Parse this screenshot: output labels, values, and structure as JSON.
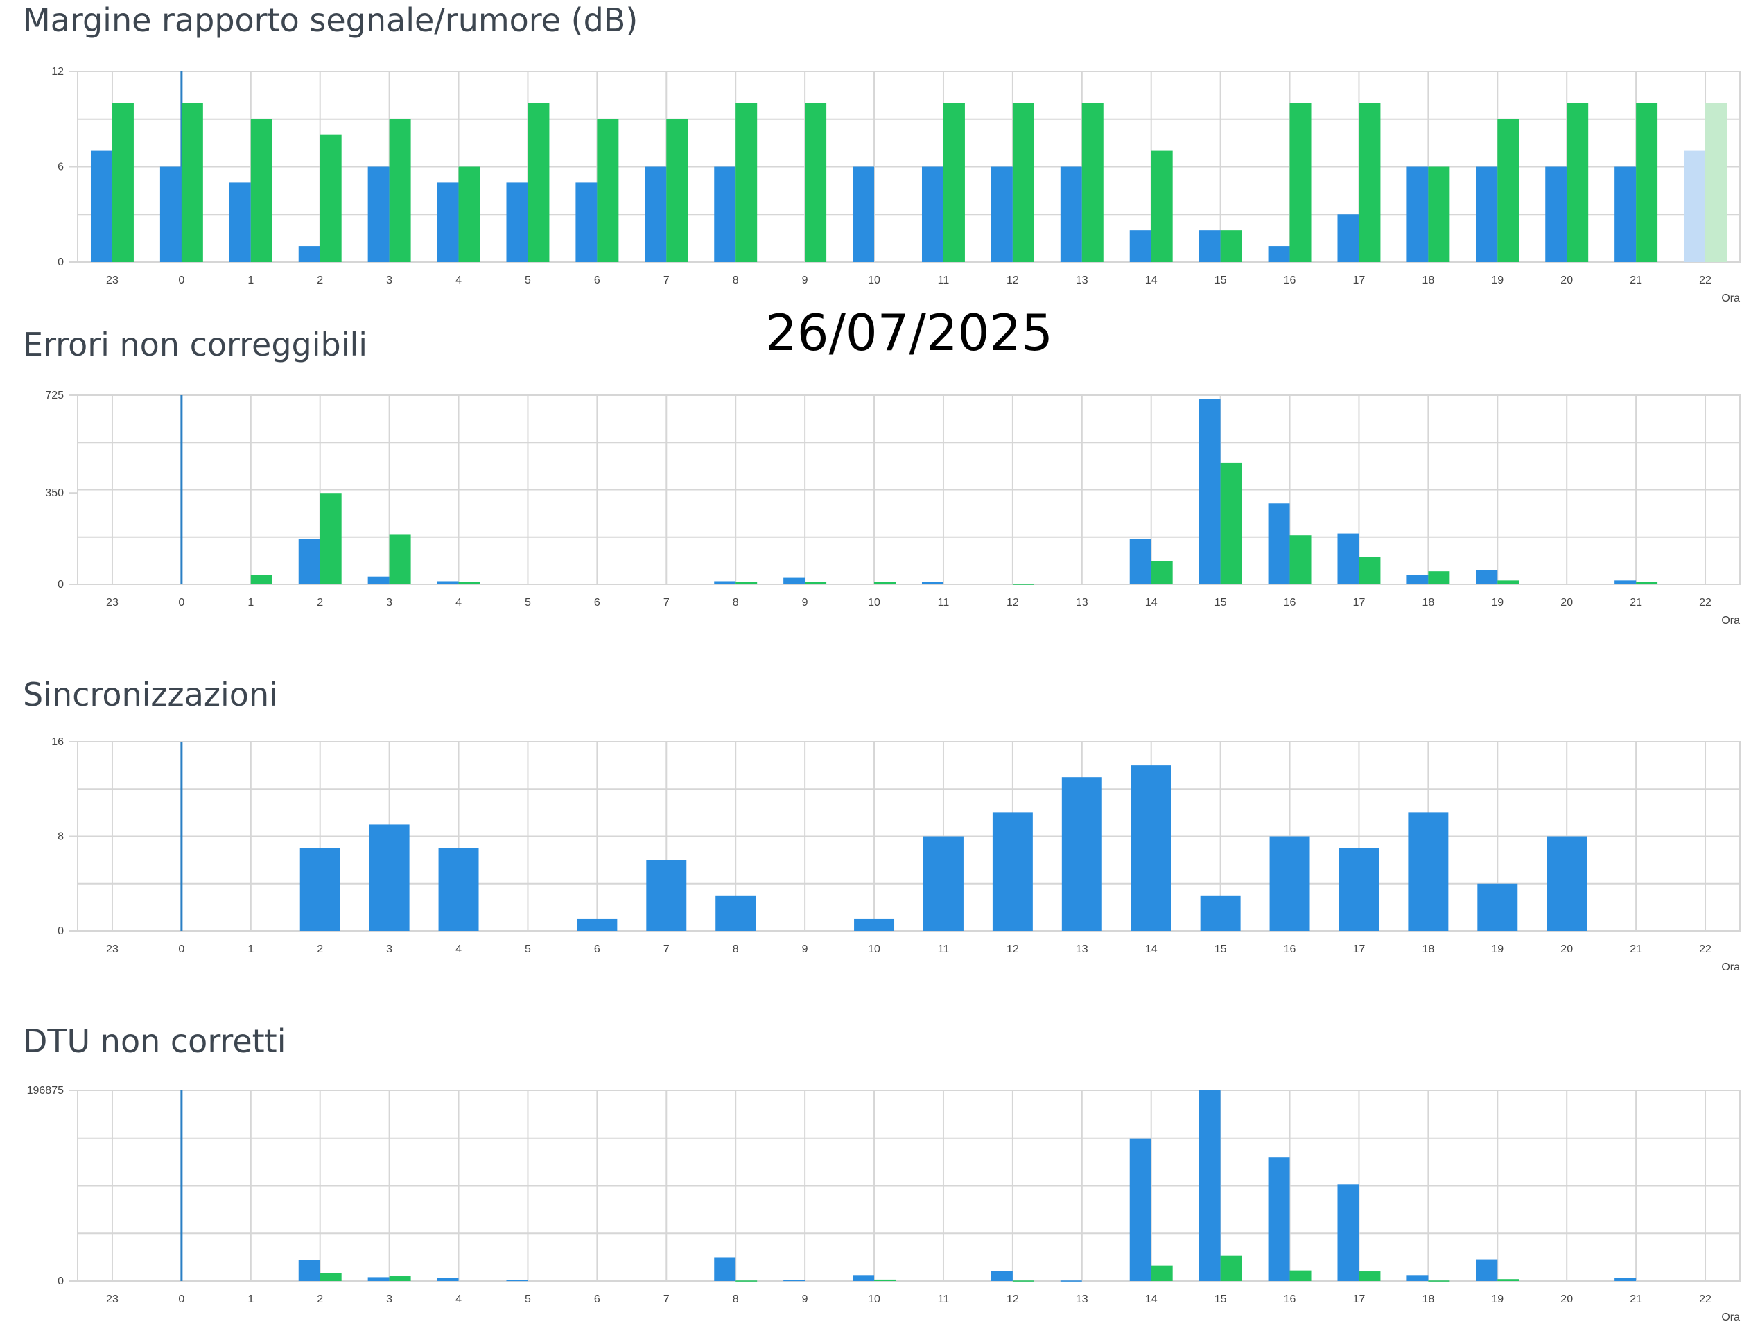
{
  "date_label": "26/07/2025",
  "colors": {
    "series_a": "#2a8de0",
    "series_b": "#22c55e",
    "series_a_light": "#c3dcf6",
    "series_b_light": "#c5ebcd",
    "grid": "#d6d6d6"
  },
  "chart_data": [
    {
      "type": "bar",
      "title": "Margine rapporto segnale/rumore (dB)",
      "xlabel": "Ora",
      "categories": [
        "23",
        "0",
        "1",
        "2",
        "3",
        "4",
        "5",
        "6",
        "7",
        "8",
        "9",
        "10",
        "11",
        "12",
        "13",
        "14",
        "15",
        "16",
        "17",
        "18",
        "19",
        "20",
        "21",
        "22"
      ],
      "yticks": [
        "0",
        "6",
        "12"
      ],
      "ylim": [
        0,
        12
      ],
      "series": [
        {
          "values": [
            7,
            6,
            5,
            1,
            6,
            5,
            5,
            5,
            6,
            6,
            0,
            6,
            6,
            6,
            6,
            2,
            2,
            1,
            3,
            6,
            6,
            6,
            6,
            7
          ]
        },
        {
          "values": [
            10,
            10,
            9,
            8,
            9,
            6,
            10,
            9,
            9,
            10,
            10,
            0,
            10,
            10,
            10,
            7,
            2,
            10,
            10,
            6,
            9,
            10,
            10,
            10
          ]
        }
      ],
      "faded_last": true
    },
    {
      "type": "bar",
      "title": "Errori non correggibili",
      "xlabel": "Ora",
      "categories": [
        "23",
        "0",
        "1",
        "2",
        "3",
        "4",
        "5",
        "6",
        "7",
        "8",
        "9",
        "10",
        "11",
        "12",
        "13",
        "14",
        "15",
        "16",
        "17",
        "18",
        "19",
        "20",
        "21",
        "22"
      ],
      "yticks": [
        "0",
        "350",
        "725"
      ],
      "ylim": [
        0,
        725
      ],
      "series": [
        {
          "values": [
            0,
            0,
            0,
            175,
            30,
            12,
            0,
            0,
            0,
            12,
            25,
            0,
            8,
            0,
            0,
            175,
            710,
            310,
            195,
            35,
            55,
            0,
            15,
            0
          ]
        },
        {
          "values": [
            0,
            0,
            35,
            350,
            190,
            10,
            0,
            0,
            0,
            8,
            8,
            8,
            0,
            2,
            0,
            90,
            465,
            188,
            105,
            50,
            15,
            0,
            8,
            0
          ]
        }
      ]
    },
    {
      "type": "bar",
      "title": "Sincronizzazioni",
      "xlabel": "Ora",
      "categories": [
        "23",
        "0",
        "1",
        "2",
        "3",
        "4",
        "5",
        "6",
        "7",
        "8",
        "9",
        "10",
        "11",
        "12",
        "13",
        "14",
        "15",
        "16",
        "17",
        "18",
        "19",
        "20",
        "21",
        "22"
      ],
      "yticks": [
        "0",
        "8",
        "16"
      ],
      "ylim": [
        0,
        16
      ],
      "series": [
        {
          "values": [
            0,
            0,
            0,
            7,
            9,
            7,
            0,
            1,
            6,
            3,
            0,
            1,
            8,
            10,
            13,
            14,
            3,
            8,
            7,
            10,
            4,
            8,
            0,
            0
          ]
        }
      ]
    },
    {
      "type": "bar",
      "title": "DTU non corretti",
      "xlabel": "Ora",
      "categories": [
        "23",
        "0",
        "1",
        "2",
        "3",
        "4",
        "5",
        "6",
        "7",
        "8",
        "9",
        "10",
        "11",
        "12",
        "13",
        "14",
        "15",
        "16",
        "17",
        "18",
        "19",
        "20",
        "21",
        "22"
      ],
      "yticks": [
        "0",
        "196875"
      ],
      "ylim": [
        0,
        196875
      ],
      "series": [
        {
          "values": [
            0,
            0,
            0,
            22000,
            4000,
            3500,
            1000,
            0,
            0,
            24000,
            1000,
            5500,
            0,
            10500,
            500,
            147000,
            196875,
            128000,
            100000,
            5500,
            22500,
            0,
            3500,
            0
          ]
        },
        {
          "values": [
            0,
            0,
            0,
            8000,
            5000,
            0,
            0,
            0,
            0,
            500,
            0,
            1500,
            0,
            500,
            0,
            16000,
            26000,
            11000,
            10000,
            500,
            2000,
            0,
            0,
            0
          ]
        }
      ]
    }
  ]
}
